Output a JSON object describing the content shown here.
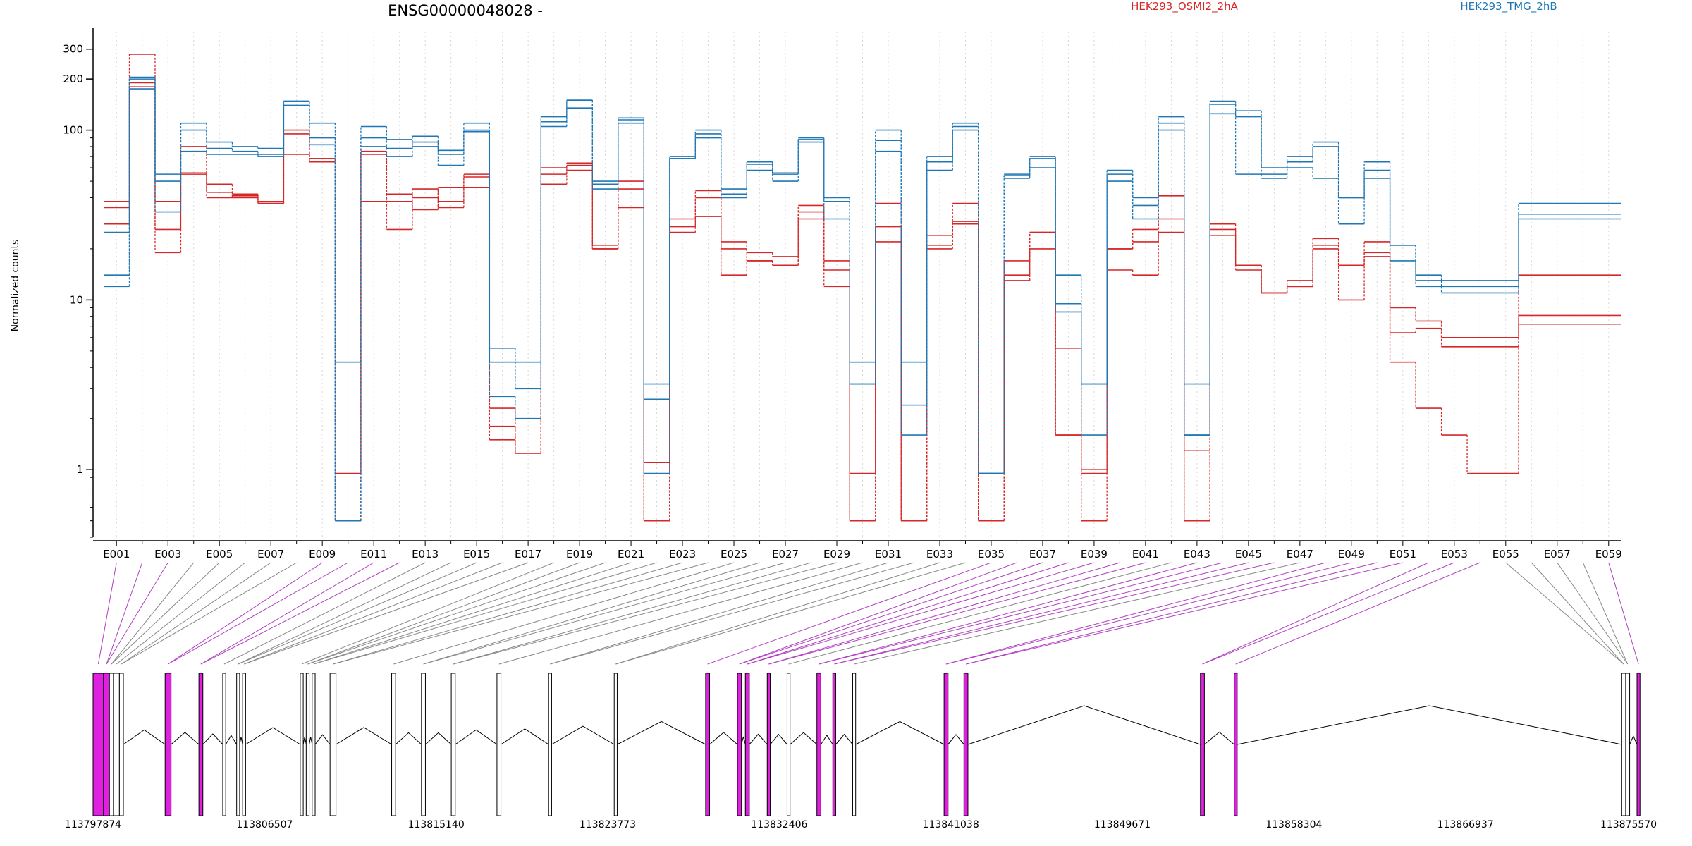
{
  "colors": {
    "osmi": "#d62728",
    "tmg": "#1f77b4",
    "highlight": "#e020e0",
    "exon_plain": "#888888"
  },
  "chart_data": {
    "type": "line",
    "title": "ENSG00000048028 -",
    "ylabel": "Normalized counts",
    "yscale": "log",
    "ylim": [
      0.4,
      380
    ],
    "yticks": [
      "1",
      "10",
      "100",
      "200",
      "300"
    ],
    "grid": true,
    "legend": [
      {
        "name": "HEK293_OSMI2_2hA",
        "color": "#d62728"
      },
      {
        "name": "HEK293_TMG_2hB",
        "color": "#1f77b4"
      }
    ],
    "x_tick_labels": [
      "E001",
      "E003",
      "E005",
      "E007",
      "E009",
      "E011",
      "E013",
      "E015",
      "E017",
      "E019",
      "E021",
      "E023",
      "E025",
      "E027",
      "E029",
      "E031",
      "E033",
      "E035",
      "E037",
      "E039",
      "E041",
      "E043",
      "E045",
      "E047",
      "E049",
      "E051",
      "E053",
      "E055",
      "E057",
      "E059"
    ],
    "series": [
      {
        "group": "OSMI2",
        "values": [
          38,
          190,
          26,
          55,
          48,
          40,
          37,
          95,
          65,
          0.95,
          72,
          42,
          40,
          35,
          53,
          1.8,
          1.25,
          60,
          64,
          20,
          50,
          1.1,
          27,
          31,
          20,
          17,
          16,
          33,
          17,
          0.5,
          37,
          0.5,
          20,
          28,
          0.5,
          17,
          25,
          5.2,
          1.0,
          20,
          26,
          30,
          1.3,
          28,
          16,
          11,
          12,
          23,
          16,
          19,
          9.0,
          7.5,
          6.0,
          6.0,
          6.0,
          14,
          14,
          14,
          14
        ]
      },
      {
        "group": "OSMI2",
        "values": [
          28,
          180,
          38,
          80,
          43,
          42,
          37,
          72,
          68,
          0.5,
          75,
          26,
          45,
          38,
          46,
          1.5,
          1.25,
          55,
          62,
          21,
          35,
          0.5,
          30,
          40,
          22,
          19,
          18,
          30,
          15,
          0.5,
          22,
          0.5,
          21,
          29,
          0.5,
          14,
          25,
          1.6,
          0.5,
          20,
          22,
          25,
          0.5,
          26,
          15,
          11,
          13,
          20,
          10,
          18,
          6.4,
          6.8,
          5.3,
          5.3,
          5.3,
          7.2,
          7.2,
          7.2,
          7.2
        ]
      },
      {
        "group": "OSMI2",
        "values": [
          35,
          280,
          19,
          56,
          40,
          41,
          38,
          100,
          68,
          0.5,
          38,
          38,
          34,
          46,
          55,
          2.3,
          1.25,
          48,
          58,
          20,
          45,
          0.5,
          25,
          44,
          14,
          17,
          16,
          36,
          12,
          0.95,
          27,
          0.5,
          24,
          37,
          0.5,
          13,
          20,
          1.6,
          0.95,
          15,
          14,
          41,
          0.5,
          24,
          16,
          11,
          12,
          21,
          16,
          22,
          4.3,
          2.3,
          1.6,
          0.95,
          0.95,
          8.1,
          8.1,
          8.1,
          8.1
        ]
      },
      {
        "group": "TMG",
        "values": [
          14,
          200,
          55,
          100,
          78,
          75,
          72,
          140,
          90,
          0.5,
          105,
          70,
          92,
          72,
          100,
          5.2,
          4.3,
          105,
          135,
          50,
          115,
          3.2,
          68,
          90,
          40,
          58,
          50,
          88,
          30,
          4.3,
          87,
          4.3,
          58,
          105,
          0.95,
          52,
          60,
          14,
          1.6,
          55,
          36,
          100,
          1.6,
          125,
          55,
          52,
          60,
          52,
          40,
          52,
          21,
          14,
          13,
          13,
          13,
          37,
          37,
          37,
          37
        ]
      },
      {
        "group": "TMG",
        "values": [
          12,
          175,
          33,
          75,
          72,
          72,
          70,
          148,
          82,
          4.3,
          80,
          78,
          85,
          62,
          98,
          2.7,
          2.0,
          112,
          150,
          45,
          110,
          2.6,
          70,
          95,
          42,
          63,
          56,
          90,
          38,
          3.2,
          75,
          2.4,
          70,
          110,
          0.95,
          54,
          68,
          9.5,
          3.2,
          58,
          40,
          120,
          1.6,
          142,
          120,
          55,
          65,
          80,
          28,
          58,
          17,
          12,
          11,
          11,
          11,
          30,
          30,
          30,
          30
        ]
      },
      {
        "group": "TMG",
        "values": [
          25,
          205,
          50,
          110,
          85,
          80,
          78,
          148,
          110,
          0.5,
          90,
          88,
          80,
          76,
          110,
          4.3,
          3.0,
          120,
          150,
          48,
          118,
          0.95,
          68,
          100,
          45,
          65,
          55,
          85,
          40,
          3.2,
          100,
          1.6,
          65,
          100,
          0.95,
          55,
          70,
          8.5,
          3.2,
          50,
          30,
          110,
          3.2,
          148,
          130,
          60,
          70,
          85,
          40,
          65,
          21,
          13,
          12,
          12,
          12,
          32,
          32,
          32,
          32
        ]
      }
    ],
    "gene_track": {
      "start_label": "113797874",
      "end_label": "113875570",
      "coord_ticks": [
        "113797874",
        "113806507",
        "113815140",
        "113823773",
        "113832406",
        "113841038",
        "113849671",
        "113858304",
        "113866937",
        "113875570"
      ],
      "start": 113797874,
      "end": 113875570,
      "exons": [
        {
          "s": 113797874,
          "e": 113798400,
          "hl": true
        },
        {
          "s": 113798400,
          "e": 113798700,
          "hl": true
        },
        {
          "s": 113798700,
          "e": 113798900,
          "hl": false
        },
        {
          "s": 113798900,
          "e": 113799200,
          "hl": false
        },
        {
          "s": 113799200,
          "e": 113799400,
          "hl": false
        },
        {
          "s": 113801500,
          "e": 113801800,
          "hl": true
        },
        {
          "s": 113803200,
          "e": 113803400,
          "hl": true
        },
        {
          "s": 113804400,
          "e": 113804550,
          "hl": false
        },
        {
          "s": 113805100,
          "e": 113805250,
          "hl": false
        },
        {
          "s": 113805400,
          "e": 113805550,
          "hl": false
        },
        {
          "s": 113808300,
          "e": 113808450,
          "hl": false
        },
        {
          "s": 113808600,
          "e": 113808750,
          "hl": false
        },
        {
          "s": 113808900,
          "e": 113809050,
          "hl": false
        },
        {
          "s": 113809800,
          "e": 113810100,
          "hl": false
        },
        {
          "s": 113812900,
          "e": 113813100,
          "hl": false
        },
        {
          "s": 113814400,
          "e": 113814600,
          "hl": false
        },
        {
          "s": 113815900,
          "e": 113816100,
          "hl": false
        },
        {
          "s": 113818200,
          "e": 113818400,
          "hl": false
        },
        {
          "s": 113820800,
          "e": 113820950,
          "hl": false
        },
        {
          "s": 113824100,
          "e": 113824250,
          "hl": false
        },
        {
          "s": 113828700,
          "e": 113828900,
          "hl": true
        },
        {
          "s": 113830300,
          "e": 113830500,
          "hl": true
        },
        {
          "s": 113830700,
          "e": 113830900,
          "hl": true
        },
        {
          "s": 113831800,
          "e": 113831950,
          "hl": true
        },
        {
          "s": 113832800,
          "e": 113832950,
          "hl": false
        },
        {
          "s": 113834300,
          "e": 113834500,
          "hl": true
        },
        {
          "s": 113835100,
          "e": 113835250,
          "hl": true
        },
        {
          "s": 113836100,
          "e": 113836250,
          "hl": false
        },
        {
          "s": 113840700,
          "e": 113840900,
          "hl": true
        },
        {
          "s": 113841700,
          "e": 113841900,
          "hl": true
        },
        {
          "s": 113853600,
          "e": 113853800,
          "hl": true
        },
        {
          "s": 113855300,
          "e": 113855450,
          "hl": true
        },
        {
          "s": 113874800,
          "e": 113875000,
          "hl": false
        },
        {
          "s": 113875000,
          "e": 113875200,
          "hl": false
        },
        {
          "s": 113875570,
          "e": 113875720,
          "hl": true
        }
      ]
    }
  }
}
